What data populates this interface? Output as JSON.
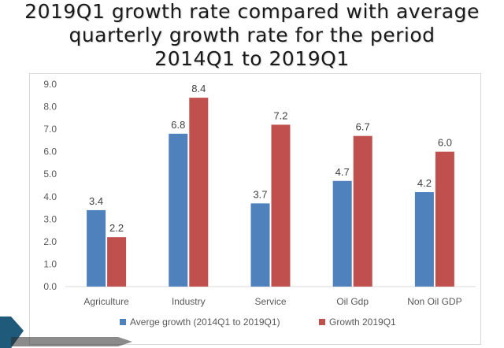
{
  "slide": {
    "title_lines": [
      "2019Q1 growth rate compared with average",
      "quarterly growth rate for the period",
      "2014Q1 to 2019Q1"
    ]
  },
  "colors": {
    "series_a": "#4f81bd",
    "series_b": "#c0504d",
    "decoration": "#1f5a7a"
  },
  "chart_data": {
    "type": "bar",
    "categories": [
      "Agriculture",
      "Industry",
      "Service",
      "Oil Gdp",
      "Non Oil GDP"
    ],
    "series": [
      {
        "name": "Averge growth  (2014Q1 to 2019Q1)",
        "values": [
          3.4,
          6.8,
          3.7,
          4.7,
          4.2
        ]
      },
      {
        "name": "Growth 2019Q1",
        "values": [
          2.2,
          8.4,
          7.2,
          6.7,
          6.0
        ]
      }
    ],
    "y_ticks": [
      "0.0",
      "1.0",
      "2.0",
      "3.0",
      "4.0",
      "5.0",
      "6.0",
      "7.0",
      "8.0",
      "9.0"
    ],
    "ylim": [
      0,
      9
    ],
    "grid": false,
    "legend": "bottom"
  }
}
